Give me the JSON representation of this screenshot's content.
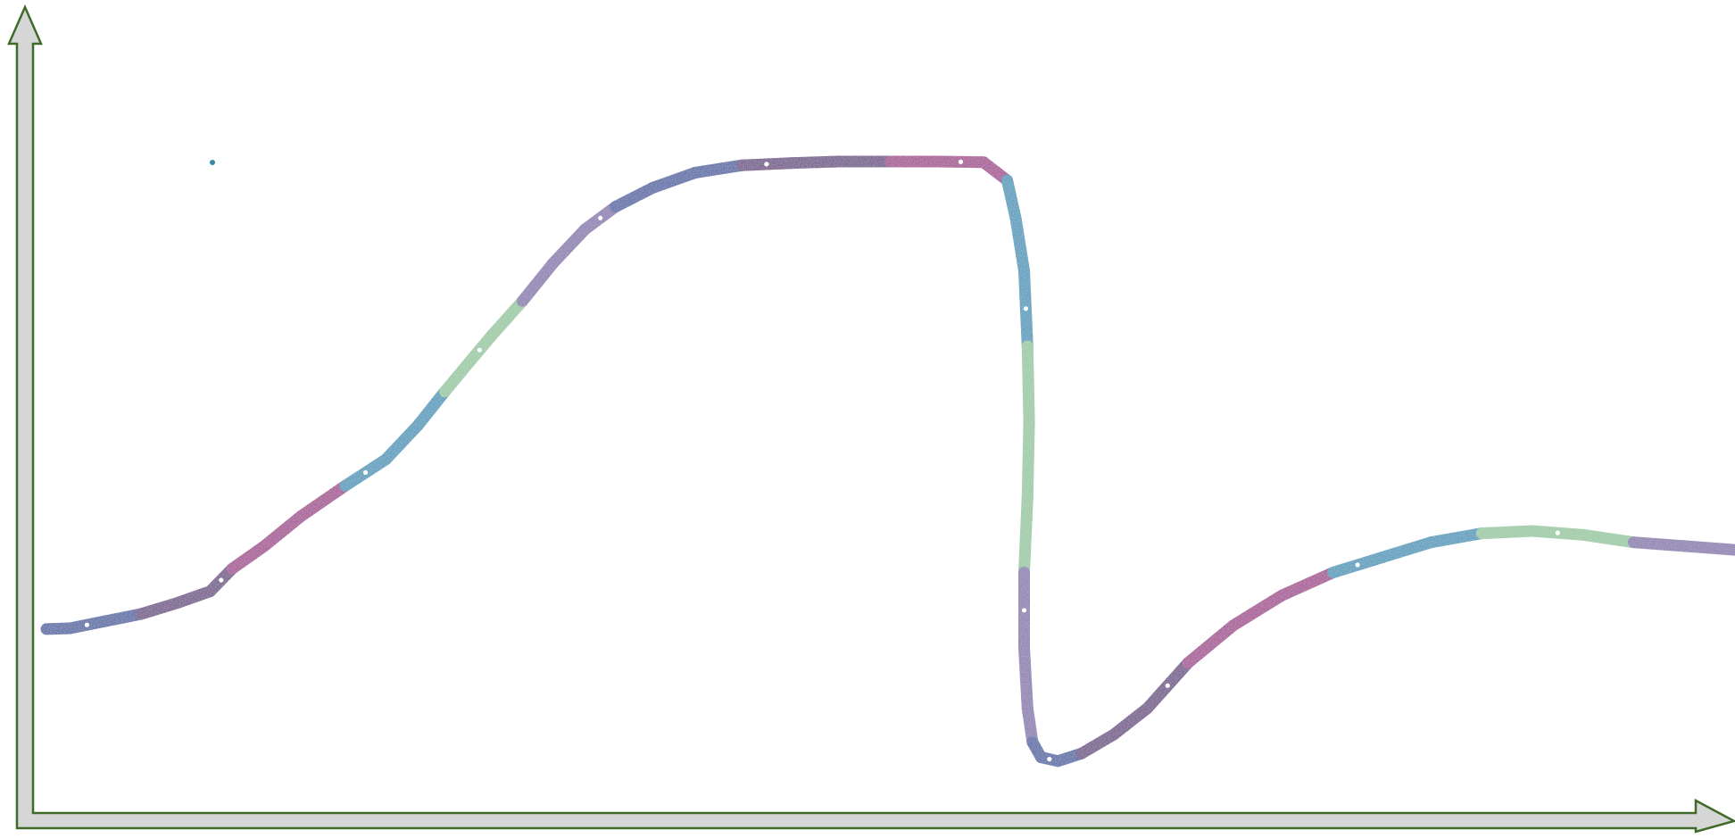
{
  "chart_data": {
    "type": "line",
    "title": "",
    "xlabel": "",
    "ylabel": "",
    "grid": false,
    "legend": "none",
    "xlim": [
      0,
      100
    ],
    "ylim": [
      0,
      100
    ],
    "series": [
      {
        "x": [
          0,
          1.4,
          3.4,
          5.6,
          7.8,
          9.7,
          11.0,
          12.9,
          15.1,
          17.7,
          20.1,
          22.0,
          23.6,
          24.9,
          26.4,
          28.2,
          30.0,
          31.9,
          33.7,
          35.9,
          38.4,
          41.2,
          44.1,
          46.9,
          50.0,
          52.8,
          55.5,
          56.9,
          57.4,
          57.9,
          58.1,
          58.2,
          58.1,
          57.9,
          57.9,
          58.1,
          58.4,
          58.9,
          59.9,
          61.3,
          63.2,
          65.2,
          67.6,
          70.3,
          73.2,
          76.2,
          79.1,
          82.0,
          85.0,
          88.0,
          91.0,
          94.0,
          97.0,
          100.0
        ],
        "y": [
          22.5,
          22.6,
          23.5,
          24.5,
          26.0,
          27.5,
          30.5,
          33.5,
          37.5,
          41.5,
          45.0,
          49.5,
          54.0,
          57.5,
          61.5,
          66.0,
          71.0,
          75.5,
          78.5,
          81.0,
          83.0,
          84.0,
          84.3,
          84.5,
          84.5,
          84.5,
          84.4,
          82.0,
          77.0,
          70.0,
          60.0,
          50.0,
          40.0,
          30.0,
          20.0,
          12.0,
          7.5,
          5.5,
          5.0,
          6.0,
          8.5,
          12.0,
          18.0,
          23.0,
          27.0,
          30.0,
          32.0,
          34.0,
          35.2,
          35.5,
          35.0,
          34.0,
          33.5,
          33.0
        ]
      }
    ],
    "colors": [
      "#2b4d9b",
      "#5a2c7a",
      "#9b1f86",
      "#1e8fb5",
      "#8fc49a",
      "#7d6aa8"
    ]
  }
}
